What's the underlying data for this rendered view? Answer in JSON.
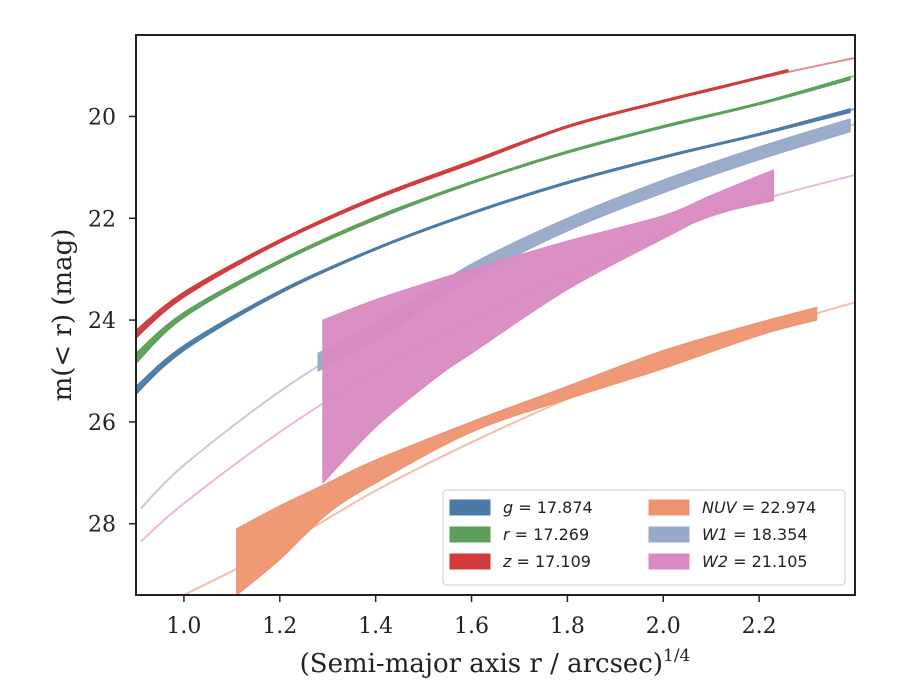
{
  "chart_data": {
    "type": "area",
    "xlabel": "(Semi-major axis r / arcsec)",
    "xlabel_exponent": "1/4",
    "ylabel": "m(< r) (mag)",
    "xlim": [
      0.9,
      2.4
    ],
    "ylim": [
      29.4,
      18.4
    ],
    "y_inverted": true,
    "grid": false,
    "legend_position": "lower-right",
    "x_ticks": [
      1.0,
      1.2,
      1.4,
      1.6,
      1.8,
      2.0,
      2.2
    ],
    "x_tick_labels": [
      "1.0",
      "1.2",
      "1.4",
      "1.6",
      "1.8",
      "2.0",
      "2.2"
    ],
    "y_ticks": [
      20,
      22,
      24,
      26,
      28
    ],
    "y_tick_labels": [
      "20",
      "22",
      "24",
      "26",
      "28"
    ],
    "series": [
      {
        "name": "g = 17.874",
        "band": "g",
        "total_mag": "17.874",
        "color": "#4a7ba7",
        "legend_col": 0,
        "x": [
          0.9,
          1.0,
          1.2,
          1.4,
          1.6,
          1.8,
          2.0,
          2.2,
          2.4
        ],
        "y": [
          25.45,
          24.55,
          23.45,
          22.6,
          21.9,
          21.3,
          20.8,
          20.35,
          19.85
        ],
        "band_x": [
          0.9,
          1.0,
          1.2,
          1.4,
          1.6,
          1.8,
          2.0,
          2.2,
          2.39
        ],
        "band_hi": [
          25.3,
          24.5,
          23.42,
          22.58,
          21.88,
          21.28,
          20.78,
          20.33,
          19.85
        ],
        "band_lo": [
          25.45,
          24.6,
          23.48,
          22.62,
          21.92,
          21.32,
          20.82,
          20.37,
          19.92
        ]
      },
      {
        "name": "r = 17.269",
        "band": "r",
        "total_mag": "17.269",
        "color": "#5aa05a",
        "legend_col": 0,
        "x": [
          0.9,
          1.0,
          1.2,
          1.4,
          1.6,
          1.8,
          2.0,
          2.2,
          2.4
        ],
        "y": [
          24.8,
          23.9,
          22.85,
          22.0,
          21.3,
          20.7,
          20.2,
          19.75,
          19.2
        ],
        "band_x": [
          0.9,
          1.0,
          1.2,
          1.4,
          1.6,
          1.8,
          2.0,
          2.2,
          2.39
        ],
        "band_hi": [
          24.65,
          23.85,
          22.82,
          21.97,
          21.28,
          20.68,
          20.18,
          19.73,
          19.22
        ],
        "band_lo": [
          24.85,
          23.95,
          22.88,
          22.03,
          21.32,
          20.72,
          20.22,
          19.77,
          19.28
        ]
      },
      {
        "name": "z = 17.109",
        "band": "z",
        "total_mag": "17.109",
        "color": "#d03a3a",
        "legend_col": 0,
        "x": [
          0.9,
          1.0,
          1.2,
          1.4,
          1.6,
          1.8,
          2.0,
          2.2,
          2.4
        ],
        "y": [
          24.3,
          23.5,
          22.45,
          21.6,
          20.9,
          20.2,
          19.7,
          19.25,
          18.85
        ],
        "band_x": [
          0.9,
          1.0,
          1.2,
          1.4,
          1.6,
          1.8,
          2.0,
          2.1,
          2.26
        ],
        "band_hi": [
          24.2,
          23.45,
          22.42,
          21.57,
          20.87,
          20.18,
          19.68,
          19.45,
          19.08
        ],
        "band_lo": [
          24.35,
          23.55,
          22.48,
          21.63,
          20.93,
          20.22,
          19.72,
          19.49,
          19.12
        ]
      },
      {
        "name": "NUV = 22.974",
        "band": "NUV",
        "total_mag": "22.974",
        "color": "#ee9370",
        "legend_col": 1,
        "x": [
          1.0,
          1.2,
          1.4,
          1.6,
          1.8,
          2.0,
          2.2,
          2.4
        ],
        "y": [
          29.4,
          28.45,
          27.35,
          26.4,
          25.55,
          24.8,
          24.2,
          23.65
        ],
        "band_x": [
          1.11,
          1.2,
          1.3,
          1.4,
          1.6,
          1.8,
          2.0,
          2.2,
          2.32
        ],
        "band_hi": [
          28.1,
          27.65,
          27.2,
          26.75,
          26.0,
          25.3,
          24.6,
          24.05,
          23.75
        ],
        "band_lo": [
          29.4,
          28.7,
          27.8,
          27.2,
          26.2,
          25.55,
          24.95,
          24.3,
          24.0
        ]
      },
      {
        "name": "W1 = 18.354",
        "band": "W1",
        "total_mag": "18.354",
        "color": "#97a8c8",
        "legend_col": 1,
        "x": [
          0.91,
          1.0,
          1.2,
          1.4,
          1.6,
          1.8,
          2.0,
          2.2,
          2.4
        ],
        "y": [
          27.7,
          26.85,
          25.4,
          24.2,
          23.05,
          22.1,
          21.35,
          20.7,
          20.15
        ],
        "band_x": [
          1.28,
          1.4,
          1.6,
          1.8,
          2.0,
          2.2,
          2.39
        ],
        "band_hi": [
          24.65,
          24.05,
          22.9,
          22.0,
          21.25,
          20.6,
          20.05
        ],
        "band_lo": [
          25.0,
          24.4,
          23.2,
          22.25,
          21.5,
          20.85,
          20.3
        ]
      },
      {
        "name": "W2 = 21.105",
        "band": "W2",
        "total_mag": "21.105",
        "color": "#d98ac2",
        "legend_col": 1,
        "x": [
          0.91,
          1.0,
          1.2,
          1.4,
          1.6,
          1.8,
          2.0,
          2.2,
          2.4
        ],
        "y": [
          28.35,
          27.6,
          26.2,
          25.0,
          24.0,
          23.1,
          22.3,
          21.65,
          21.15
        ],
        "band_x": [
          1.29,
          1.4,
          1.53,
          1.6,
          1.8,
          2.0,
          2.1,
          2.23
        ],
        "band_hi": [
          24.0,
          23.6,
          23.2,
          23.0,
          22.45,
          21.95,
          21.55,
          21.05
        ],
        "band_lo": [
          27.2,
          26.1,
          25.1,
          24.65,
          23.4,
          22.4,
          21.95,
          21.65
        ]
      }
    ]
  }
}
